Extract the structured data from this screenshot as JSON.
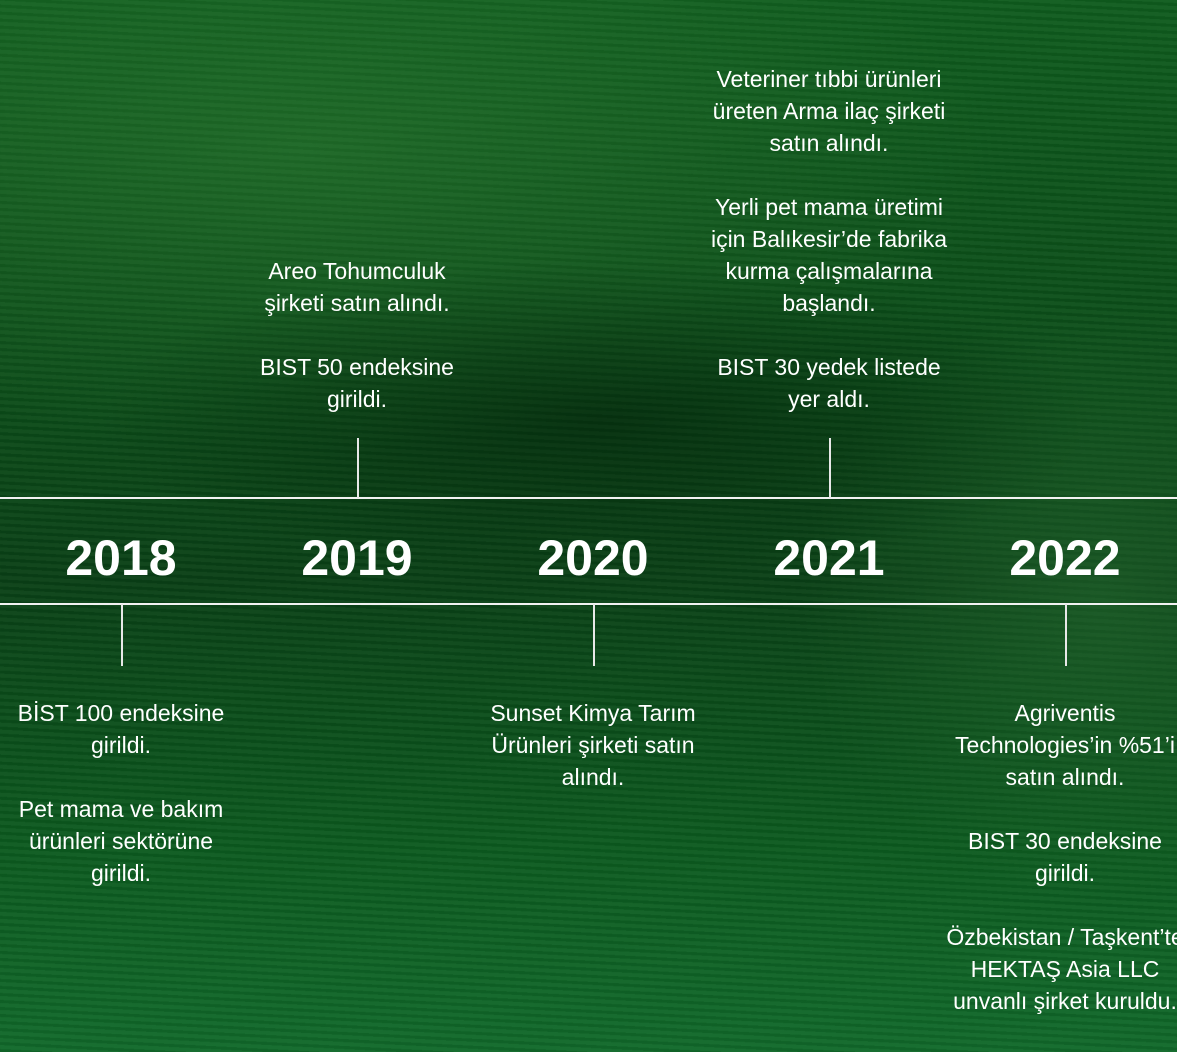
{
  "timeline": [
    {
      "year": "2018",
      "events": [
        "BİST 100 endeksine girildi.",
        "Pet mama ve bakım ürünleri sektörüne girildi."
      ]
    },
    {
      "year": "2019",
      "events": [
        "Areo Tohumculuk şirketi satın alındı.",
        "BIST 50 endeksine girildi."
      ]
    },
    {
      "year": "2020",
      "events": [
        "Sunset Kimya Tarım Ürünleri şirketi satın alındı."
      ]
    },
    {
      "year": "2021",
      "events": [
        "Veteriner tıbbi ürünleri üreten Arma ilaç şirketi satın alındı.",
        "Yerli pet mama üretimi için Balıkesir’de fabrika kurma çalışmalarına başlandı.",
        "BIST 30 yedek listede yer aldı."
      ]
    },
    {
      "year": "2022",
      "events": [
        "Agriventis Technologies’in %51’i satın alındı.",
        "BIST 30 endeksine girildi.",
        "Özbekistan / Taşkent’te HEKTAŞ Asia LLC unvanlı şirket kuruldu."
      ]
    }
  ]
}
